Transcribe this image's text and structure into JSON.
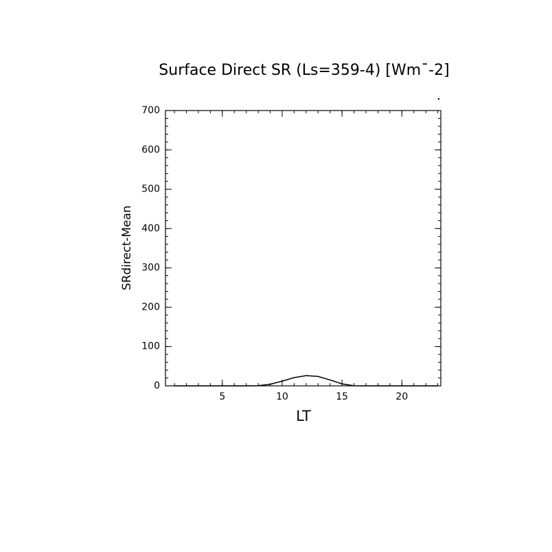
{
  "chart_data": {
    "type": "line",
    "title": "Surface Direct SR (Ls=359-4) [Wm¯-2]",
    "x_label": "LT",
    "y_label": "SRdirect-Mean",
    "x": [
      1,
      2,
      3,
      4,
      5,
      6,
      7,
      8,
      9,
      10,
      11,
      12,
      13,
      14,
      15,
      16,
      17,
      18,
      19,
      20,
      21,
      22,
      23
    ],
    "values": [
      0,
      0,
      0,
      0,
      0,
      0,
      0,
      0.5,
      4,
      12,
      21,
      26,
      24,
      15,
      5,
      0.3,
      0,
      0,
      0,
      0,
      0,
      0,
      0
    ],
    "color": "#000000",
    "xlim": [
      0.25,
      23.25
    ],
    "xticks": [
      5,
      10,
      15,
      20
    ],
    "xminor": 1,
    "ylim": [
      0,
      700
    ],
    "yticks": [
      0,
      100,
      200,
      300,
      400,
      500,
      600,
      700
    ],
    "yminor": 20,
    "grid": false
  }
}
